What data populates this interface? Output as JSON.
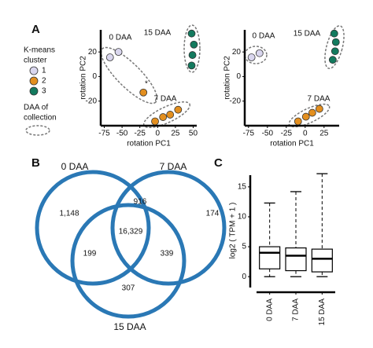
{
  "panels": [
    "A",
    "B",
    "C"
  ],
  "legend": {
    "title_lines": [
      "K-means",
      "cluster"
    ],
    "items": [
      "1",
      "2",
      "3"
    ],
    "ellipse_lines": [
      "DAA of",
      "collection"
    ]
  },
  "chart_data": [
    {
      "type": "scatter",
      "xlabel": "rotation PC1",
      "ylabel": "rotation PC2",
      "xlim": [
        -80,
        55
      ],
      "ylim": [
        -40,
        38
      ],
      "xticks": [
        -75,
        -50,
        -25,
        0,
        25,
        50
      ],
      "yticks": [
        20,
        0,
        -20
      ],
      "annotations": [
        "0 DAA",
        "15 DAA",
        "7 DAA",
        "*"
      ],
      "series": [
        {
          "color": "#d9d6ee",
          "x": [
            -67,
            -55
          ],
          "y": [
            15.6,
            20
          ]
        },
        {
          "color": "#e38f1f",
          "x": [
            -20,
            -3.6,
            7.6,
            17.6,
            28.8
          ],
          "y": [
            -13,
            -36.5,
            -33,
            -31,
            -27
          ]
        },
        {
          "color": "#137a5e",
          "x": [
            47.8,
            51,
            49,
            47.8
          ],
          "y": [
            35,
            26,
            17.5,
            9
          ]
        }
      ]
    },
    {
      "type": "scatter",
      "xlabel": "rotation PC1",
      "ylabel": "rotation PC2",
      "xlim": [
        -80,
        45
      ],
      "ylim": [
        -40,
        38
      ],
      "xticks": [
        -75,
        -50,
        -25,
        0,
        25
      ],
      "yticks": [
        20,
        0,
        -20
      ],
      "annotations": [
        "0 DAA",
        "15 DAA",
        "7 DAA"
      ],
      "series": [
        {
          "color": "#d9d6ee",
          "x": [
            -71,
            -60.4
          ],
          "y": [
            15.6,
            19
          ]
        },
        {
          "color": "#e38f1f",
          "x": [
            -9.4,
            1,
            9.4,
            18.8
          ],
          "y": [
            -36.5,
            -32.7,
            -29.5,
            -26.3
          ]
        },
        {
          "color": "#137a5e",
          "x": [
            38.5,
            40.6,
            39.6,
            36.5
          ],
          "y": [
            35,
            28,
            20.6,
            13.6
          ]
        }
      ]
    },
    {
      "type": "venn",
      "sets": [
        "0 DAA",
        "7 DAA",
        "15 DAA"
      ],
      "color": "#2a78b5",
      "values": [
        1148,
        916,
        174,
        16329,
        199,
        339,
        307
      ],
      "value_labels": [
        "1,148",
        "916",
        "174",
        "16,329",
        "199",
        "339",
        "307"
      ]
    },
    {
      "type": "box",
      "ylabel": "log2 ( TPM + 1 )",
      "categories": [
        "0 DAA",
        "7 DAA",
        "15 DAA"
      ],
      "ylim": [
        -2.6,
        18
      ],
      "yticks": [
        0,
        5,
        10,
        15
      ],
      "min": [
        0,
        0,
        0
      ],
      "q1": [
        1.3,
        1,
        0.8
      ],
      "median": [
        4,
        3.5,
        3
      ],
      "q3": [
        5,
        4.8,
        4.6
      ],
      "max": [
        12.3,
        14.2,
        17.2
      ]
    }
  ]
}
